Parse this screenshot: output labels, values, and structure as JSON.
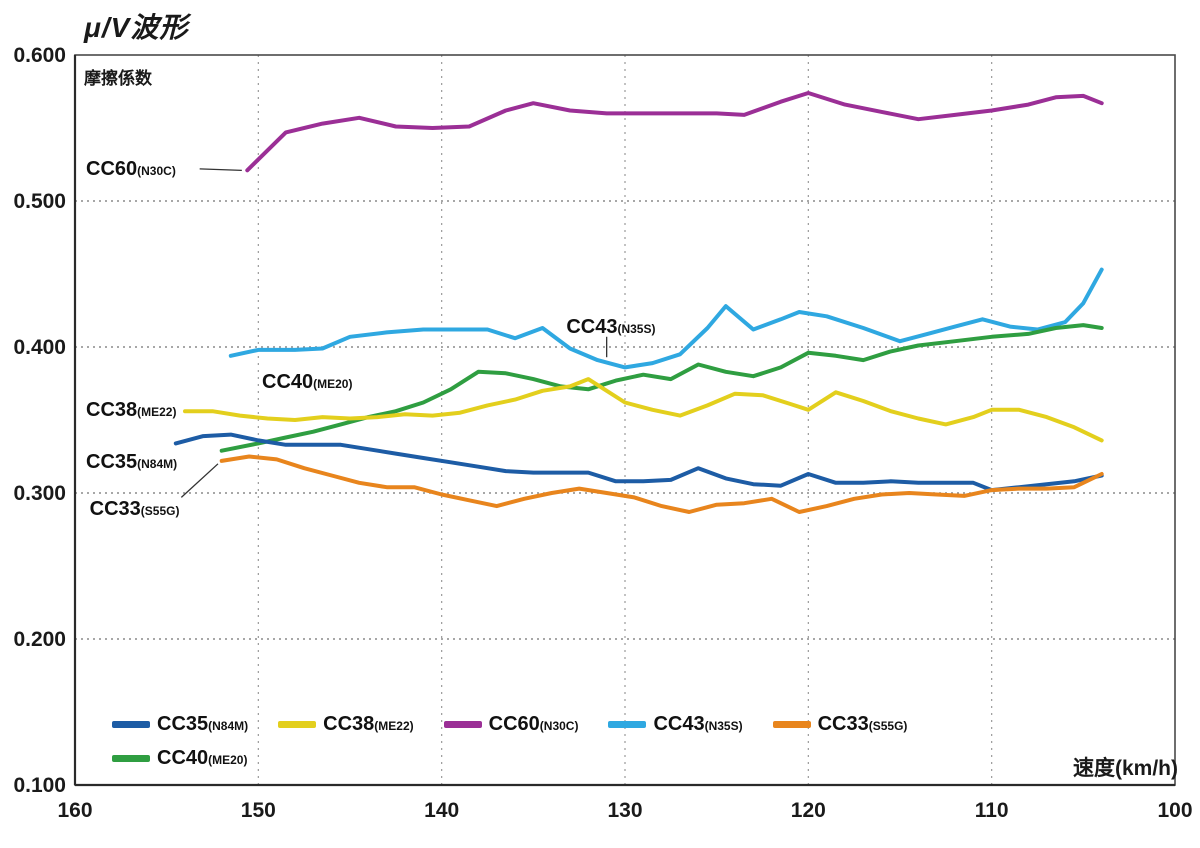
{
  "header": {
    "title": "μ/V波形",
    "y_caption": "摩擦係数",
    "x_axis_label": "速度(km/h)"
  },
  "chart_data": {
    "type": "line",
    "title": "μ/V波形",
    "ylabel": "摩擦係数",
    "xlabel": "速度(km/h)",
    "xlim": [
      160,
      100
    ],
    "ylim": [
      0.1,
      0.6
    ],
    "x_ticks": [
      160,
      150,
      140,
      130,
      120,
      110,
      100
    ],
    "y_ticks": [
      "0.600",
      "0.500",
      "0.400",
      "0.300",
      "0.200",
      "0.100"
    ],
    "grid": {
      "horizontal": [
        0.5,
        0.4,
        0.3,
        0.2
      ],
      "vertical": [
        150,
        140,
        130,
        120,
        110
      ]
    },
    "legend_position": "bottom-left-inside",
    "series": [
      {
        "name": "CC60",
        "sub": "(N30C)",
        "color": "#9b2f96",
        "points": [
          [
            150.6,
            0.521
          ],
          [
            148.5,
            0.547
          ],
          [
            146.5,
            0.553
          ],
          [
            144.5,
            0.557
          ],
          [
            142.5,
            0.551
          ],
          [
            140.5,
            0.55
          ],
          [
            138.5,
            0.551
          ],
          [
            136.5,
            0.562
          ],
          [
            135,
            0.567
          ],
          [
            133,
            0.562
          ],
          [
            131,
            0.56
          ],
          [
            129,
            0.56
          ],
          [
            127,
            0.56
          ],
          [
            125,
            0.56
          ],
          [
            123.5,
            0.559
          ],
          [
            121.5,
            0.568
          ],
          [
            120,
            0.574
          ],
          [
            118,
            0.566
          ],
          [
            116,
            0.561
          ],
          [
            114,
            0.556
          ],
          [
            112,
            0.559
          ],
          [
            110,
            0.562
          ],
          [
            108,
            0.566
          ],
          [
            106.5,
            0.571
          ],
          [
            105,
            0.572
          ],
          [
            104,
            0.567
          ]
        ]
      },
      {
        "name": "CC43",
        "sub": "(N35S)",
        "color": "#2fa8e1",
        "points": [
          [
            151.5,
            0.394
          ],
          [
            150,
            0.398
          ],
          [
            148,
            0.398
          ],
          [
            146.5,
            0.399
          ],
          [
            145,
            0.407
          ],
          [
            143,
            0.41
          ],
          [
            141,
            0.412
          ],
          [
            139,
            0.412
          ],
          [
            137.5,
            0.412
          ],
          [
            136,
            0.406
          ],
          [
            134.5,
            0.413
          ],
          [
            133,
            0.399
          ],
          [
            131.5,
            0.391
          ],
          [
            130,
            0.386
          ],
          [
            128.5,
            0.389
          ],
          [
            127,
            0.395
          ],
          [
            125.5,
            0.413
          ],
          [
            124.5,
            0.428
          ],
          [
            123,
            0.412
          ],
          [
            121.5,
            0.419
          ],
          [
            120.5,
            0.424
          ],
          [
            119,
            0.421
          ],
          [
            117,
            0.413
          ],
          [
            115,
            0.404
          ],
          [
            113.5,
            0.409
          ],
          [
            112,
            0.414
          ],
          [
            110.5,
            0.419
          ],
          [
            109,
            0.414
          ],
          [
            107.5,
            0.412
          ],
          [
            106,
            0.417
          ],
          [
            105,
            0.43
          ],
          [
            104,
            0.453
          ]
        ]
      },
      {
        "name": "CC40",
        "sub": "(ME20)",
        "color": "#2f9e41",
        "points": [
          [
            152,
            0.329
          ],
          [
            150,
            0.334
          ],
          [
            148.5,
            0.338
          ],
          [
            147,
            0.342
          ],
          [
            145.5,
            0.347
          ],
          [
            144,
            0.352
          ],
          [
            142.5,
            0.356
          ],
          [
            141,
            0.362
          ],
          [
            139.5,
            0.371
          ],
          [
            138,
            0.383
          ],
          [
            136.5,
            0.382
          ],
          [
            135,
            0.378
          ],
          [
            133.5,
            0.373
          ],
          [
            132,
            0.371
          ],
          [
            130.5,
            0.377
          ],
          [
            129,
            0.381
          ],
          [
            127.5,
            0.378
          ],
          [
            126,
            0.388
          ],
          [
            124.5,
            0.383
          ],
          [
            123,
            0.38
          ],
          [
            121.5,
            0.386
          ],
          [
            120,
            0.396
          ],
          [
            118.5,
            0.394
          ],
          [
            117,
            0.391
          ],
          [
            115.5,
            0.397
          ],
          [
            114,
            0.401
          ],
          [
            112,
            0.404
          ],
          [
            110,
            0.407
          ],
          [
            108,
            0.409
          ],
          [
            106.5,
            0.413
          ],
          [
            105,
            0.415
          ],
          [
            104,
            0.413
          ]
        ]
      },
      {
        "name": "CC38",
        "sub": "(ME22)",
        "color": "#e3cf1d",
        "points": [
          [
            154,
            0.356
          ],
          [
            152.5,
            0.356
          ],
          [
            151,
            0.353
          ],
          [
            149.5,
            0.351
          ],
          [
            148,
            0.35
          ],
          [
            146.5,
            0.352
          ],
          [
            145,
            0.351
          ],
          [
            143.5,
            0.352
          ],
          [
            142,
            0.354
          ],
          [
            140.5,
            0.353
          ],
          [
            139,
            0.355
          ],
          [
            137.5,
            0.36
          ],
          [
            136,
            0.364
          ],
          [
            134.5,
            0.37
          ],
          [
            133,
            0.373
          ],
          [
            132,
            0.378
          ],
          [
            131,
            0.37
          ],
          [
            130,
            0.362
          ],
          [
            128.5,
            0.357
          ],
          [
            127,
            0.353
          ],
          [
            125.5,
            0.36
          ],
          [
            124,
            0.368
          ],
          [
            122.5,
            0.367
          ],
          [
            121,
            0.361
          ],
          [
            120,
            0.357
          ],
          [
            118.5,
            0.369
          ],
          [
            117,
            0.363
          ],
          [
            115.5,
            0.356
          ],
          [
            114,
            0.351
          ],
          [
            112.5,
            0.347
          ],
          [
            111,
            0.352
          ],
          [
            110,
            0.357
          ],
          [
            108.5,
            0.357
          ],
          [
            107,
            0.352
          ],
          [
            105.5,
            0.345
          ],
          [
            104,
            0.336
          ]
        ]
      },
      {
        "name": "CC35",
        "sub": "(N84M)",
        "color": "#1d5ca5",
        "points": [
          [
            154.5,
            0.334
          ],
          [
            153,
            0.339
          ],
          [
            151.5,
            0.34
          ],
          [
            150,
            0.336
          ],
          [
            148.5,
            0.333
          ],
          [
            147,
            0.333
          ],
          [
            145.5,
            0.333
          ],
          [
            144,
            0.33
          ],
          [
            142.5,
            0.327
          ],
          [
            141,
            0.324
          ],
          [
            139.5,
            0.321
          ],
          [
            138,
            0.318
          ],
          [
            136.5,
            0.315
          ],
          [
            135,
            0.314
          ],
          [
            133.5,
            0.314
          ],
          [
            132,
            0.314
          ],
          [
            130.5,
            0.308
          ],
          [
            129,
            0.308
          ],
          [
            127.5,
            0.309
          ],
          [
            126,
            0.317
          ],
          [
            124.5,
            0.31
          ],
          [
            123,
            0.306
          ],
          [
            121.5,
            0.305
          ],
          [
            120,
            0.313
          ],
          [
            118.5,
            0.307
          ],
          [
            117,
            0.307
          ],
          [
            115.5,
            0.308
          ],
          [
            114,
            0.307
          ],
          [
            112.5,
            0.307
          ],
          [
            111,
            0.307
          ],
          [
            110,
            0.302
          ],
          [
            108.5,
            0.304
          ],
          [
            107,
            0.306
          ],
          [
            105.5,
            0.308
          ],
          [
            104,
            0.312
          ]
        ]
      },
      {
        "name": "CC33",
        "sub": "(S55G)",
        "color": "#e8851d",
        "points": [
          [
            152,
            0.322
          ],
          [
            150.5,
            0.325
          ],
          [
            149,
            0.323
          ],
          [
            147.5,
            0.317
          ],
          [
            146,
            0.312
          ],
          [
            144.5,
            0.307
          ],
          [
            143,
            0.304
          ],
          [
            141.5,
            0.304
          ],
          [
            140,
            0.299
          ],
          [
            138.5,
            0.295
          ],
          [
            137,
            0.291
          ],
          [
            135.5,
            0.296
          ],
          [
            134,
            0.3
          ],
          [
            132.5,
            0.303
          ],
          [
            131,
            0.3
          ],
          [
            129.5,
            0.297
          ],
          [
            128,
            0.291
          ],
          [
            126.5,
            0.287
          ],
          [
            125,
            0.292
          ],
          [
            123.5,
            0.293
          ],
          [
            122,
            0.296
          ],
          [
            120.5,
            0.287
          ],
          [
            119,
            0.291
          ],
          [
            117.5,
            0.296
          ],
          [
            116,
            0.299
          ],
          [
            114.5,
            0.3
          ],
          [
            113,
            0.299
          ],
          [
            111.5,
            0.298
          ],
          [
            110,
            0.302
          ],
          [
            108.5,
            0.303
          ],
          [
            107,
            0.303
          ],
          [
            105.5,
            0.304
          ],
          [
            104,
            0.313
          ]
        ]
      }
    ],
    "annotations": [
      {
        "text": "CC60",
        "sub": "(N30C)",
        "tx": 159.4,
        "ty": 0.522,
        "leader": [
          [
            153.2,
            0.522
          ],
          [
            150.9,
            0.521
          ]
        ]
      },
      {
        "text": "CC38",
        "sub": "(ME22)",
        "tx": 159.4,
        "ty": 0.357,
        "leader": null
      },
      {
        "text": "CC35",
        "sub": "(N84M)",
        "tx": 159.4,
        "ty": 0.321,
        "leader": null
      },
      {
        "text": "CC33",
        "sub": "(S55G)",
        "tx": 159.2,
        "ty": 0.289,
        "leader": [
          [
            154.2,
            0.297
          ],
          [
            152.2,
            0.32
          ]
        ]
      },
      {
        "text": "CC40",
        "sub": "(ME20)",
        "tx": 149.8,
        "ty": 0.376,
        "leader": null
      },
      {
        "text": "CC43",
        "sub": "(N35S)",
        "tx": 133.2,
        "ty": 0.414,
        "leader": [
          [
            131.0,
            0.407
          ],
          [
            131.0,
            0.393
          ]
        ]
      }
    ],
    "legend": [
      {
        "name": "CC35",
        "sub": "(N84M)",
        "color": "#1d5ca5"
      },
      {
        "name": "CC38",
        "sub": "(ME22)",
        "color": "#e3cf1d"
      },
      {
        "name": "CC60",
        "sub": "(N30C)",
        "color": "#9b2f96"
      },
      {
        "name": "CC43",
        "sub": "(N35S)",
        "color": "#2fa8e1"
      },
      {
        "name": "CC33",
        "sub": "(S55G)",
        "color": "#e8851d"
      },
      {
        "name": "CC40",
        "sub": "(ME20)",
        "color": "#2f9e41"
      }
    ]
  }
}
